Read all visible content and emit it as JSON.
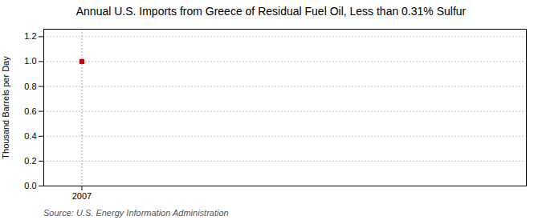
{
  "chart_data": {
    "type": "scatter",
    "title": "Annual U.S. Imports from Greece of Residual Fuel Oil, Less than 0.31% Sulfur",
    "ylabel": "Thousand Barrels per Day",
    "annotations": [
      "Source: U.S. Energy Information Administration"
    ],
    "x": [
      2007
    ],
    "values": [
      1.0
    ],
    "color": "#cc0000",
    "marker": "square",
    "xlim": [
      2006.4,
      2014.0
    ],
    "ylim": [
      0.0,
      1.26
    ],
    "xticks": [
      2007
    ],
    "yticks": [
      {
        "value": 0.0,
        "label": "0.0"
      },
      0.2,
      0.4,
      0.6,
      0.8,
      {
        "value": 1.0,
        "label": "1.0"
      },
      1.2
    ],
    "grid": true
  }
}
